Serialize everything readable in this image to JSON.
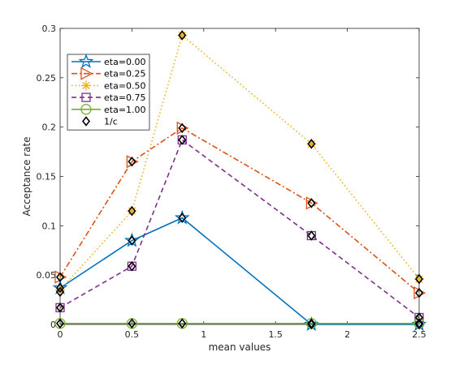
{
  "chart_data": {
    "type": "line",
    "xlabel": "mean values",
    "ylabel": "Acceptance rate",
    "xlim": [
      0,
      2.5
    ],
    "ylim": [
      0,
      0.3
    ],
    "xticks": [
      0,
      0.5,
      1,
      1.5,
      2,
      2.5
    ],
    "yticks": [
      0,
      0.05,
      0.1,
      0.15,
      0.2,
      0.25,
      0.3
    ],
    "xtick_labels": [
      "0",
      "0.5",
      "1",
      "1.5",
      "2",
      "2.5"
    ],
    "ytick_labels": [
      "0",
      "0.05",
      "0.1",
      "0.15",
      "0.2",
      "0.25",
      "0.3"
    ],
    "grid": false,
    "legend_position": "top-left",
    "x": [
      0,
      0.5,
      0.85,
      1.75,
      2.5
    ],
    "series": [
      {
        "name": "eta=0.00",
        "values": [
          0.037,
          0.085,
          0.108,
          0.0,
          0.0
        ],
        "color": "#0072bd",
        "dash": "solid",
        "marker": "star"
      },
      {
        "name": "eta=0.25",
        "values": [
          0.048,
          0.165,
          0.199,
          0.123,
          0.032
        ],
        "color": "#d95319",
        "dash": "dashdot",
        "marker": "triangle-right"
      },
      {
        "name": "eta=0.50",
        "values": [
          0.035,
          0.115,
          0.293,
          0.183,
          0.046
        ],
        "color": "#edb120",
        "dash": "dotted",
        "marker": "asterisk"
      },
      {
        "name": "eta=0.75",
        "values": [
          0.017,
          0.059,
          0.187,
          0.09,
          0.007
        ],
        "color": "#7e2f8e",
        "dash": "dashed",
        "marker": "square"
      },
      {
        "name": "eta=1.00",
        "values": [
          0.001,
          0.001,
          0.001,
          0.001,
          0.001
        ],
        "color": "#77ac30",
        "dash": "solid",
        "marker": "circle"
      },
      {
        "name": "1/c",
        "values": [
          0.033,
          0.115,
          0.293,
          0.183,
          0.046
        ],
        "extra_points": [
          [
            0,
            0.017
          ],
          [
            0.5,
            0.059
          ],
          [
            0.85,
            0.187
          ],
          [
            1.75,
            0.09
          ],
          [
            2.5,
            0.007
          ],
          [
            0,
            0.048
          ],
          [
            0.5,
            0.165
          ],
          [
            0.85,
            0.199
          ],
          [
            1.75,
            0.123
          ],
          [
            2.5,
            0.032
          ],
          [
            0,
            0.037
          ],
          [
            0.5,
            0.085
          ],
          [
            0.85,
            0.108
          ],
          [
            1.75,
            0.0
          ],
          [
            2.5,
            0.0
          ],
          [
            0,
            0.001
          ],
          [
            0.5,
            0.001
          ],
          [
            0.85,
            0.001
          ],
          [
            1.75,
            0.001
          ],
          [
            2.5,
            0.001
          ]
        ],
        "color": "#000000",
        "dash": "none",
        "marker": "diamond"
      }
    ]
  }
}
